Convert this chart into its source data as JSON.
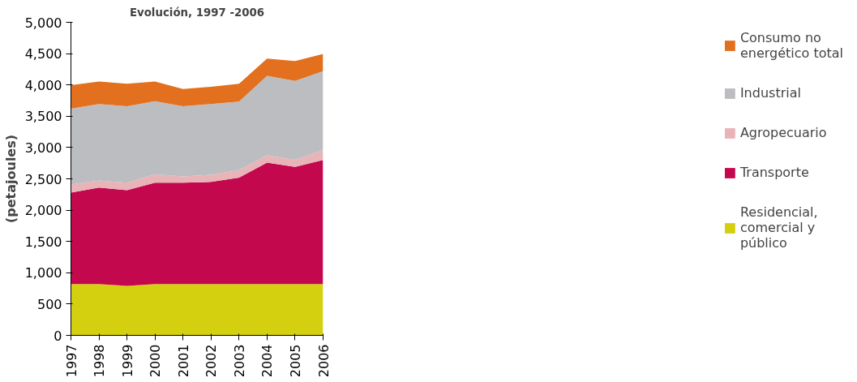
{
  "chart_data": {
    "type": "area",
    "stacked": true,
    "title": "Evolución, 1997 -2006",
    "ylabel": "(petajoules)",
    "x": [
      1997,
      1998,
      1999,
      2000,
      2001,
      2002,
      2003,
      2004,
      2005,
      2006
    ],
    "xlim": [
      1997,
      2006
    ],
    "xticks": [
      1997,
      1998,
      1999,
      2000,
      2001,
      2002,
      2003,
      2004,
      2005,
      2006
    ],
    "ylim": [
      0,
      5000
    ],
    "yticks": [
      0,
      500,
      {
        "value": 1000,
        "label": "1,000"
      },
      {
        "value": 1500,
        "label": "1,500"
      },
      {
        "value": 2000,
        "label": "2,000"
      },
      {
        "value": 2500,
        "label": "2,500"
      },
      {
        "value": 3000,
        "label": "3,000"
      },
      {
        "value": 3500,
        "label": "3,500"
      },
      {
        "value": 4000,
        "label": "4,000"
      },
      {
        "value": 4500,
        "label": "4,500"
      },
      {
        "value": 5000,
        "label": "5,000"
      }
    ],
    "grid": false,
    "legend": "right",
    "series": [
      {
        "name": "Residencial, comercial y público",
        "color": "#d4d010",
        "values": [
          820,
          820,
          790,
          820,
          820,
          820,
          820,
          820,
          820,
          820
        ]
      },
      {
        "name": "Transporte",
        "color": "#c4084e",
        "values": [
          1460,
          1540,
          1530,
          1620,
          1620,
          1630,
          1700,
          1940,
          1870,
          1980
        ]
      },
      {
        "name": "Agropecuario",
        "color": "#e8b4b8",
        "values": [
          130,
          115,
          120,
          130,
          100,
          115,
          120,
          115,
          115,
          160
        ]
      },
      {
        "name": "Industrial",
        "color": "#bcbdc0",
        "values": [
          1210,
          1220,
          1220,
          1170,
          1120,
          1130,
          1095,
          1270,
          1260,
          1260
        ]
      },
      {
        "name": "Consumo no energético total",
        "color": "#e2701e",
        "values": [
          375,
          360,
          360,
          315,
          275,
          275,
          285,
          275,
          315,
          275
        ]
      }
    ]
  }
}
